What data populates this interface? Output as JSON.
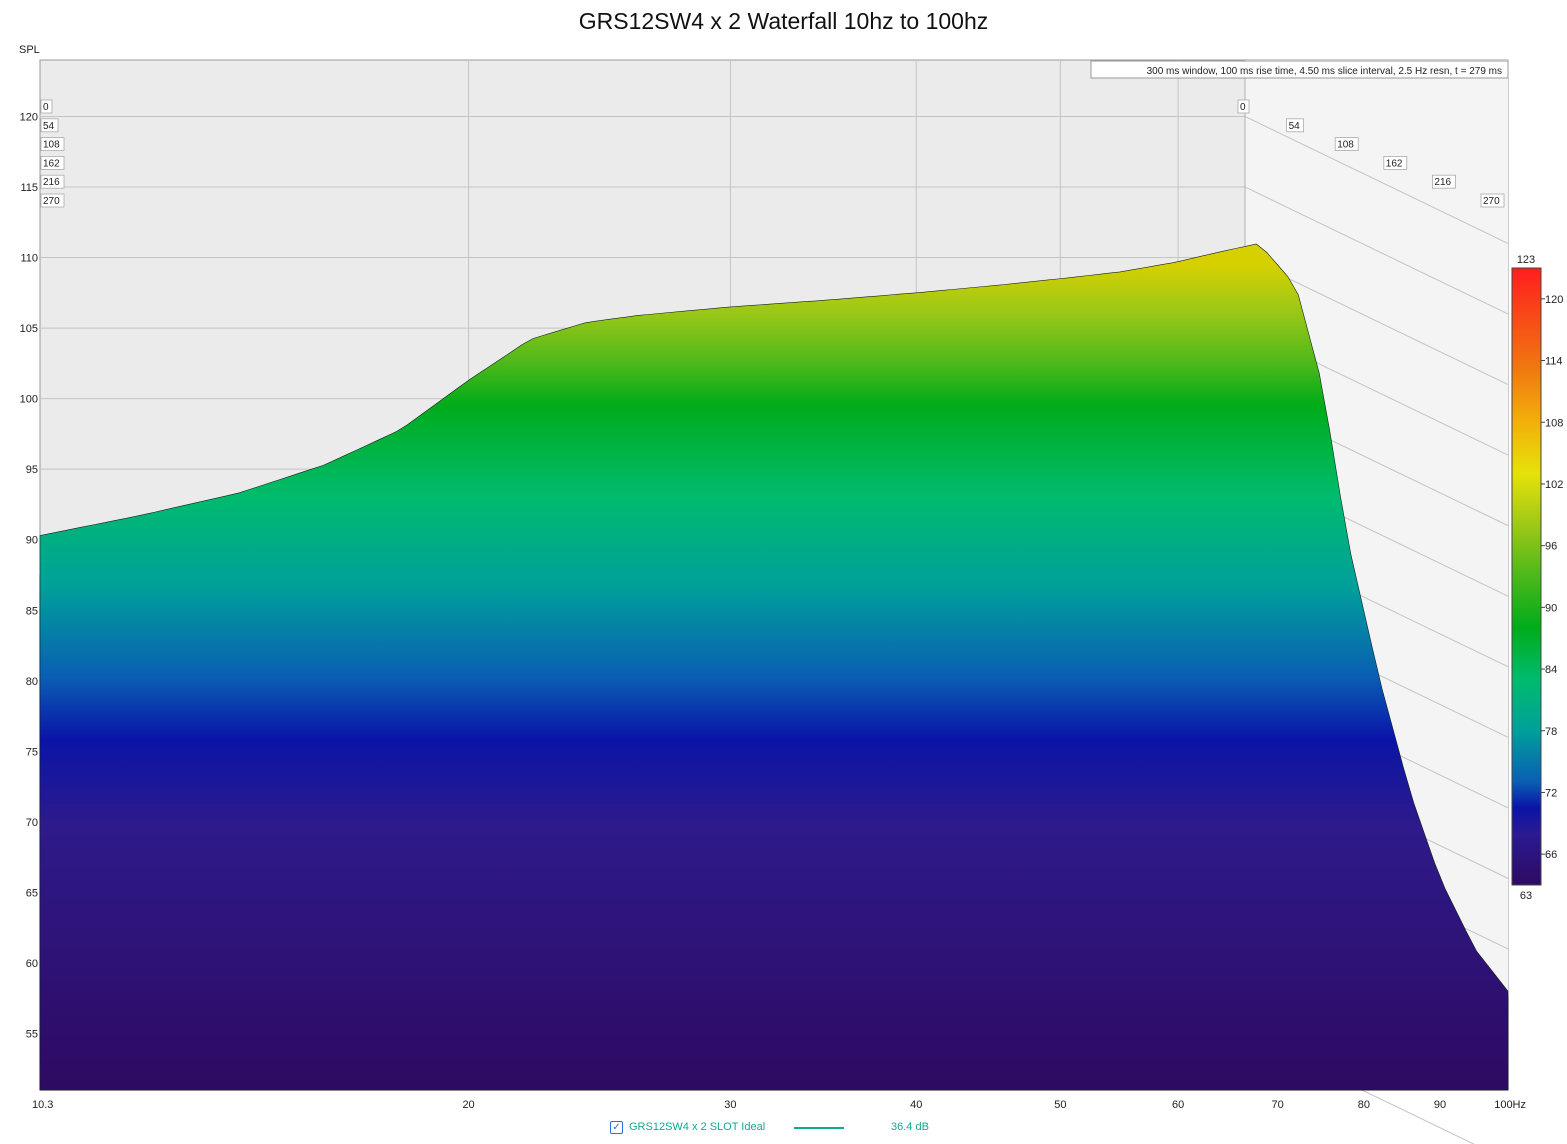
{
  "title": "GRS12SW4 x 2 Waterfall 10hz to 100hz",
  "info_box": "300 ms window, 100 ms rise time, 4.50 ms slice interval, 2.5 Hz resn, t = 279 ms",
  "colors": {
    "background": "#ffffff",
    "plot_background": "#ebebeb",
    "legend_accent": "#13a890"
  },
  "chart_data": {
    "type": "area",
    "subtype": "waterfall",
    "title": "GRS12SW4 x 2 Waterfall 10hz to 100hz",
    "ylabel": "SPL",
    "xunit": "Hz",
    "xscale": "log",
    "xlim": [
      10.3,
      100
    ],
    "ylim": [
      51,
      124
    ],
    "x_ticks": [
      "10.3",
      "20",
      "30",
      "40",
      "50",
      "60",
      "70",
      "80",
      "90",
      "100Hz"
    ],
    "x_tick_values": [
      10.3,
      20,
      30,
      40,
      50,
      60,
      70,
      80,
      90,
      100
    ],
    "y_ticks": [
      55,
      60,
      65,
      70,
      75,
      80,
      85,
      90,
      95,
      100,
      105,
      110,
      115,
      120
    ],
    "time_ticks_ms": [
      "0",
      "54",
      "108",
      "162",
      "216",
      "270"
    ],
    "time_tick_values": [
      0,
      54,
      108,
      162,
      216,
      270
    ],
    "time_range_ms": [
      0,
      279
    ],
    "slice_interval_ms": 4.5,
    "colorbar": {
      "min": 63,
      "max": 123,
      "ticks": [
        66,
        72,
        78,
        84,
        90,
        96,
        102,
        108,
        114,
        120
      ],
      "top_label": "123",
      "bottom_label": "63"
    },
    "series": [
      {
        "name": "GRS12SW4 x 2 SLOT Ideal",
        "slice_time_ms": 0,
        "x": [
          10.3,
          12,
          14,
          16,
          18,
          20,
          22,
          24,
          26,
          30,
          35,
          40,
          45,
          50,
          55,
          60,
          64,
          68,
          72,
          75,
          78,
          82,
          86,
          90,
          95,
          100
        ],
        "values": [
          90.3,
          91.7,
          93.3,
          95.3,
          97.8,
          101.3,
          104.2,
          105.4,
          105.9,
          106.5,
          107.0,
          107.5,
          108.0,
          108.5,
          109.0,
          109.7,
          110.4,
          111.0,
          108.0,
          101.0,
          90.0,
          80.0,
          72.0,
          66.0,
          61.0,
          58.0
        ]
      }
    ],
    "legend": {
      "label": "GRS12SW4 x 2 SLOT Ideal",
      "value": "36.4 dB"
    }
  }
}
